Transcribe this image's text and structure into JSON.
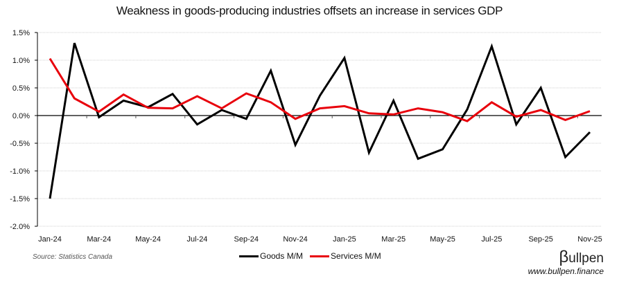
{
  "chart_data": {
    "type": "line",
    "title": "Weakness in goods-producing industries offsets an increase in services GDP",
    "xlabel": "",
    "ylabel": "",
    "ylim": [
      -2.0,
      1.5
    ],
    "y_ticks": [
      "1.5%",
      "1.0%",
      "0.5%",
      "0.0%",
      "-0.5%",
      "-1.0%",
      "-1.5%",
      "-2.0%"
    ],
    "y_tick_values": [
      1.5,
      1.0,
      0.5,
      0.0,
      -0.5,
      -1.0,
      -1.5,
      -2.0
    ],
    "grid": true,
    "x": [
      "Jan-24",
      "Feb-24",
      "Mar-24",
      "Apr-24",
      "May-24",
      "Jun-24",
      "Jul-24",
      "Aug-24",
      "Sep-24",
      "Oct-24",
      "Nov-24",
      "Dec-24",
      "Jan-25",
      "Feb-25",
      "Mar-25",
      "Apr-25",
      "May-25",
      "Jun-25",
      "Jul-25",
      "Aug-25",
      "Sep-25",
      "Oct-25",
      "Nov-25"
    ],
    "x_tick_labels": [
      "Jan-24",
      "Mar-24",
      "May-24",
      "Jul-24",
      "Sep-24",
      "Nov-24",
      "Jan-25",
      "Mar-25",
      "May-25",
      "Jul-25",
      "Sep-25",
      "Nov-25"
    ],
    "series": [
      {
        "name": "Goods M/M",
        "color": "#000000",
        "values": [
          -1.5,
          1.31,
          -0.03,
          0.27,
          0.15,
          0.39,
          -0.16,
          0.1,
          -0.06,
          0.81,
          -0.53,
          0.36,
          1.04,
          -0.67,
          0.27,
          -0.78,
          -0.61,
          0.11,
          1.25,
          -0.16,
          0.5,
          -0.75,
          -0.3
        ]
      },
      {
        "name": "Services M/M",
        "color": "#e8000b",
        "values": [
          1.03,
          0.31,
          0.07,
          0.38,
          0.14,
          0.13,
          0.35,
          0.13,
          0.4,
          0.24,
          -0.06,
          0.13,
          0.17,
          0.04,
          0.02,
          0.13,
          0.06,
          -0.1,
          0.24,
          -0.02,
          0.1,
          -0.08,
          0.08
        ]
      }
    ],
    "legend_position": "bottom-center"
  },
  "footer": {
    "source": "Source: Statistics Canada",
    "logo_beta": "β",
    "logo_text": "ullpen",
    "url": "www.bullpen.finance"
  }
}
